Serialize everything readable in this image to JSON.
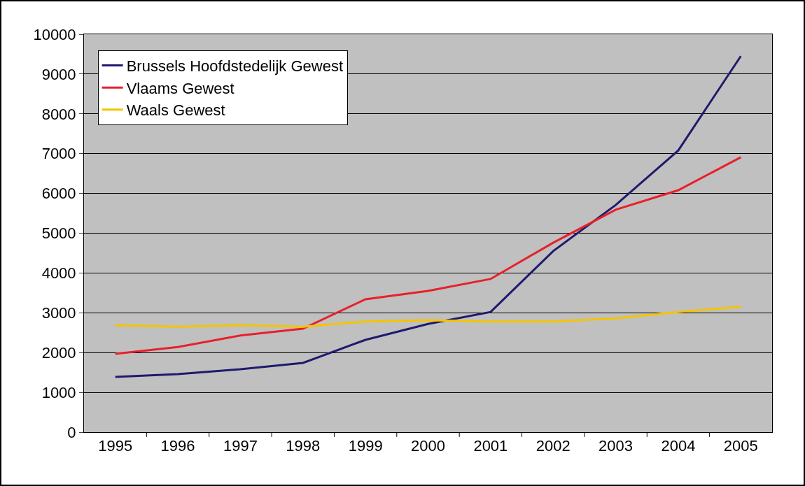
{
  "chart_data": {
    "type": "line",
    "categories": [
      "1995",
      "1996",
      "1997",
      "1998",
      "1999",
      "2000",
      "2001",
      "2002",
      "2003",
      "2004",
      "2005"
    ],
    "series": [
      {
        "name": "Brussels Hoofdstedelijk Gewest",
        "color": "#1f1a6e",
        "values": [
          1390,
          1460,
          1580,
          1740,
          2320,
          2720,
          3020,
          4550,
          5710,
          7080,
          9450
        ]
      },
      {
        "name": "Vlaams Gewest",
        "color": "#e8202a",
        "values": [
          1970,
          2140,
          2430,
          2600,
          3340,
          3550,
          3850,
          4760,
          5590,
          6080,
          6910
        ]
      },
      {
        "name": "Waals Gewest",
        "color": "#f5c400",
        "values": [
          2690,
          2650,
          2690,
          2650,
          2780,
          2810,
          2780,
          2780,
          2860,
          3020,
          3150
        ]
      }
    ],
    "ylim": [
      0,
      10000
    ],
    "yticks": [
      0,
      1000,
      2000,
      3000,
      4000,
      5000,
      6000,
      7000,
      8000,
      9000,
      10000
    ],
    "grid": "y",
    "legend": "top left",
    "marker": "none",
    "line_style": "solid"
  }
}
